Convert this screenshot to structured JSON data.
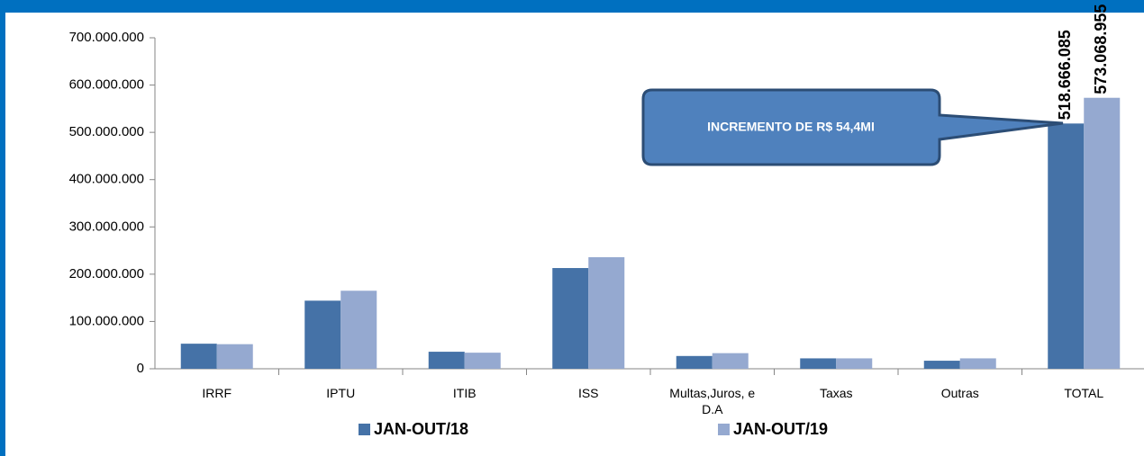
{
  "chart_data": {
    "type": "bar",
    "categories": [
      "IRRF",
      "IPTU",
      "ITIB",
      "ISS",
      "Multas,Juros, e D.A",
      "Taxas",
      "Outras",
      "TOTAL"
    ],
    "series": [
      {
        "name": "JAN-OUT/18",
        "color": "#4572a7",
        "values": [
          53000000,
          144000000,
          36000000,
          213000000,
          27000000,
          22000000,
          17000000,
          518666085
        ],
        "value_labels": [
          null,
          null,
          null,
          null,
          null,
          null,
          null,
          "518.666.085"
        ]
      },
      {
        "name": "JAN-OUT/19",
        "color": "#95a9d0",
        "values": [
          52000000,
          165000000,
          34000000,
          236000000,
          33000000,
          22000000,
          22000000,
          573068955
        ],
        "value_labels": [
          null,
          null,
          null,
          null,
          null,
          null,
          null,
          "573.068.955"
        ]
      }
    ],
    "ylim": [
      0,
      700000000
    ],
    "yticks": [
      0,
      {
        "value": 100000000,
        "label": "100.000.000"
      },
      {
        "value": 200000000,
        "label": "200.000.000"
      },
      {
        "value": 300000000,
        "label": "300.000.000"
      },
      {
        "value": 400000000,
        "label": "400.000.000"
      },
      {
        "value": 500000000,
        "label": "500.000.000"
      },
      {
        "value": 600000000,
        "label": "600.000.000"
      },
      {
        "value": 700000000,
        "label": "700.000.000"
      }
    ],
    "annotations": [
      "INCREMENTO DE R$ 54,4MI"
    ],
    "legend": "bottom"
  }
}
